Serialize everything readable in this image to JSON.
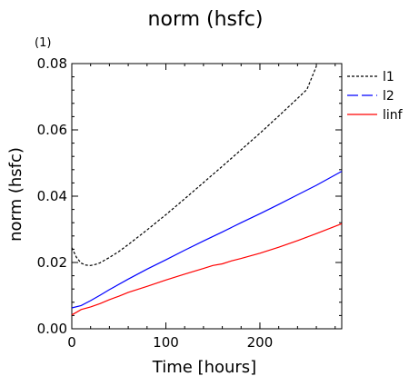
{
  "chart_data": {
    "type": "line",
    "title": "norm (hsfc)",
    "xlabel": "Time [hours]",
    "ylabel": "norm (hsfc)",
    "y_multiplier": "(1)",
    "xlim": [
      0,
      287
    ],
    "ylim": [
      0.0,
      0.08
    ],
    "xticks": [
      0,
      100,
      200
    ],
    "xtick_labels": [
      "0",
      "100",
      "200"
    ],
    "yticks": [
      0.0,
      0.02,
      0.04,
      0.06,
      0.08
    ],
    "ytick_labels": [
      "0.00",
      "0.02",
      "0.04",
      "0.06",
      "0.08"
    ],
    "grid": false,
    "legend_position": "right",
    "series": [
      {
        "name": "l1",
        "color": "#000000",
        "dash": "3,2",
        "x": [
          0,
          5,
          10,
          15,
          20,
          25,
          30,
          40,
          50,
          60,
          70,
          80,
          90,
          100,
          120,
          140,
          160,
          180,
          200,
          220,
          240,
          250,
          260
        ],
        "y": [
          0.0245,
          0.0215,
          0.0198,
          0.0192,
          0.0191,
          0.0194,
          0.0199,
          0.0215,
          0.0233,
          0.0254,
          0.0276,
          0.0298,
          0.0321,
          0.0344,
          0.0392,
          0.0441,
          0.049,
          0.054,
          0.059,
          0.0642,
          0.0695,
          0.0722,
          0.0792
        ]
      },
      {
        "name": "l2",
        "color": "#0000ff",
        "dash": "",
        "x": [
          0,
          10,
          20,
          30,
          40,
          60,
          80,
          100,
          120,
          140,
          160,
          180,
          200,
          220,
          240,
          260,
          287
        ],
        "y": [
          0.0063,
          0.007,
          0.0085,
          0.0101,
          0.0118,
          0.015,
          0.018,
          0.0208,
          0.0237,
          0.0265,
          0.0292,
          0.032,
          0.0347,
          0.0375,
          0.0404,
          0.0433,
          0.0475
        ]
      },
      {
        "name": "linf",
        "color": "#ff0000",
        "dash": "",
        "x": [
          0,
          5,
          10,
          20,
          30,
          40,
          50,
          60,
          80,
          100,
          120,
          140,
          150,
          160,
          170,
          180,
          200,
          220,
          240,
          260,
          287
        ],
        "y": [
          0.0042,
          0.005,
          0.0058,
          0.0066,
          0.0076,
          0.0088,
          0.0098,
          0.011,
          0.0128,
          0.0147,
          0.0165,
          0.0182,
          0.0191,
          0.0196,
          0.0205,
          0.0212,
          0.0228,
          0.0246,
          0.0266,
          0.0287,
          0.0317
        ]
      }
    ]
  }
}
